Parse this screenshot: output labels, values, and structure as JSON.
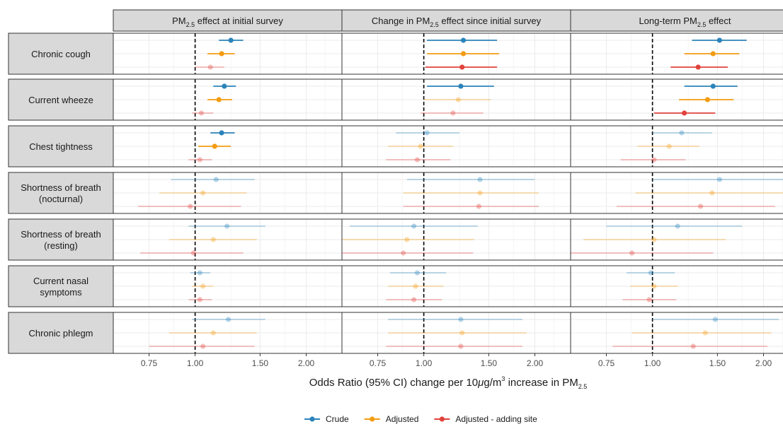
{
  "chart_data": {
    "type": "forest",
    "facets": [
      {
        "pre": "PM",
        "sub": "2.5",
        "post": " effect at initial survey"
      },
      {
        "pre": "Change in PM",
        "sub": "2.5",
        "post": " effect since initial survey"
      },
      {
        "pre": "Long-term PM",
        "sub": "2.5",
        "post": " effect"
      }
    ],
    "outcomes": [
      [
        "Chronic cough"
      ],
      [
        "Current wheeze"
      ],
      [
        "Chest tightness"
      ],
      [
        "Shortness of breath",
        "(nocturnal)"
      ],
      [
        "Shortness of breath",
        "(resting)"
      ],
      [
        "Current nasal",
        "symptoms"
      ],
      [
        "Chronic phlegm"
      ]
    ],
    "x_scale": "log",
    "xlim": [
      0.6,
      2.5
    ],
    "reference_line": 1.0,
    "ticks": [
      0.75,
      1.0,
      1.5,
      2.0
    ],
    "tick_labels": [
      "0.75",
      "1.00",
      "1.50",
      "2.00"
    ],
    "xlabel": {
      "pre": "Odds Ratio (95% CI) change per 10",
      "mu": "μ",
      "mid": "g/m",
      "sup": "3",
      "post": " increase in PM",
      "sub": "2.5"
    },
    "series": [
      {
        "name": "Crude",
        "color": "#2b83ba"
      },
      {
        "name": "Adjusted",
        "color": "#f39c12"
      },
      {
        "name": "Adjusted - adding site",
        "color": "#e0433c"
      }
    ],
    "significance": "opaque when the 95% CI excludes 1, faded otherwise",
    "estimates": [
      [
        [
          [
            1.25,
            1.16,
            1.35
          ],
          [
            1.18,
            1.08,
            1.28
          ],
          [
            1.1,
            1.0,
            1.2
          ]
        ],
        [
          [
            1.2,
            1.12,
            1.29
          ],
          [
            1.16,
            1.08,
            1.26
          ],
          [
            1.04,
            0.98,
            1.12
          ]
        ],
        [
          [
            1.18,
            1.1,
            1.28
          ],
          [
            1.13,
            1.02,
            1.25
          ],
          [
            1.03,
            0.96,
            1.11
          ]
        ],
        [
          [
            1.14,
            0.86,
            1.45
          ],
          [
            1.05,
            0.8,
            1.38
          ],
          [
            0.97,
            0.7,
            1.33
          ]
        ],
        [
          [
            1.22,
            0.96,
            1.55
          ],
          [
            1.12,
            0.85,
            1.47
          ],
          [
            0.99,
            0.71,
            1.35
          ]
        ],
        [
          [
            1.03,
            0.97,
            1.1
          ],
          [
            1.05,
            0.98,
            1.12
          ],
          [
            1.03,
            0.96,
            1.11
          ]
        ],
        [
          [
            1.23,
            0.98,
            1.55
          ],
          [
            1.12,
            0.85,
            1.47
          ],
          [
            1.05,
            0.75,
            1.45
          ]
        ]
      ],
      [
        [
          [
            1.28,
            1.02,
            1.58
          ],
          [
            1.28,
            1.02,
            1.6
          ],
          [
            1.27,
            1.01,
            1.58
          ]
        ],
        [
          [
            1.26,
            1.02,
            1.55
          ],
          [
            1.24,
            1.0,
            1.52
          ],
          [
            1.2,
            0.98,
            1.45
          ]
        ],
        [
          [
            1.02,
            0.84,
            1.25
          ],
          [
            0.98,
            0.8,
            1.2
          ],
          [
            0.96,
            0.79,
            1.18
          ]
        ],
        [
          [
            1.42,
            0.9,
            2.0
          ],
          [
            1.42,
            0.88,
            2.05
          ],
          [
            1.41,
            0.88,
            2.05
          ]
        ],
        [
          [
            0.94,
            0.63,
            1.4
          ],
          [
            0.9,
            0.6,
            1.37
          ],
          [
            0.88,
            0.58,
            1.36
          ]
        ],
        [
          [
            0.96,
            0.81,
            1.15
          ],
          [
            0.95,
            0.8,
            1.13
          ],
          [
            0.94,
            0.79,
            1.12
          ]
        ],
        [
          [
            1.26,
            0.8,
            1.85
          ],
          [
            1.27,
            0.8,
            1.9
          ],
          [
            1.26,
            0.79,
            1.85
          ]
        ]
      ],
      [
        [
          [
            1.52,
            1.28,
            1.8
          ],
          [
            1.46,
            1.22,
            1.72
          ],
          [
            1.33,
            1.12,
            1.6
          ]
        ],
        [
          [
            1.46,
            1.22,
            1.7
          ],
          [
            1.41,
            1.18,
            1.66
          ],
          [
            1.22,
            1.01,
            1.48
          ]
        ],
        [
          [
            1.2,
            1.0,
            1.45
          ],
          [
            1.11,
            0.91,
            1.34
          ],
          [
            1.01,
            0.82,
            1.23
          ]
        ],
        [
          [
            1.52,
            1.0,
            2.4
          ],
          [
            1.45,
            0.9,
            2.3
          ],
          [
            1.35,
            0.8,
            2.15
          ]
        ],
        [
          [
            1.17,
            0.75,
            1.75
          ],
          [
            1.01,
            0.65,
            1.58
          ],
          [
            0.88,
            0.59,
            1.46
          ]
        ],
        [
          [
            0.99,
            0.85,
            1.15
          ],
          [
            1.01,
            0.87,
            1.17
          ],
          [
            0.98,
            0.83,
            1.16
          ]
        ],
        [
          [
            1.48,
            1.0,
            2.2
          ],
          [
            1.39,
            0.88,
            2.1
          ],
          [
            1.29,
            0.78,
            2.05
          ]
        ]
      ]
    ]
  }
}
